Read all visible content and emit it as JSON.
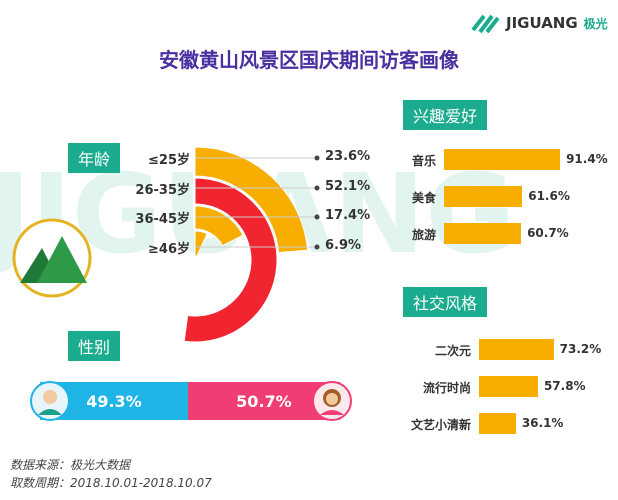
{
  "logo": {
    "text": "JIGUANG",
    "sub": "极光"
  },
  "title": "安徽黄山风景区国庆期间访客画像",
  "age": {
    "heading": "年龄",
    "items": [
      {
        "label": "≤25岁",
        "value": 23.6,
        "text": "23.6%",
        "color": "#f8ae00"
      },
      {
        "label": "26-35岁",
        "value": 52.1,
        "text": "52.1%",
        "color": "#f0252f"
      },
      {
        "label": "36-45岁",
        "value": 17.4,
        "text": "17.4%",
        "color": "#f8ae00"
      },
      {
        "label": "≥46岁",
        "value": 6.9,
        "text": "6.9%",
        "color": "#f8ae00"
      }
    ]
  },
  "gender": {
    "heading": "性别",
    "male": {
      "value": 49.3,
      "text": "49.3%",
      "color": "#1fb4e6"
    },
    "female": {
      "value": 50.7,
      "text": "50.7%",
      "color": "#f03e74"
    }
  },
  "chart_data": [
    {
      "type": "pie",
      "title": "年龄",
      "categories": [
        "≤25岁",
        "26-35岁",
        "36-45岁",
        "≥46岁"
      ],
      "values": [
        23.6,
        52.1,
        17.4,
        6.9
      ]
    },
    {
      "type": "bar",
      "title": "兴趣爱好",
      "categories": [
        "音乐",
        "美食",
        "旅游"
      ],
      "values": [
        91.4,
        61.6,
        60.7
      ]
    },
    {
      "type": "bar",
      "title": "社交风格",
      "categories": [
        "二次元",
        "流行时尚",
        "文艺小清新"
      ],
      "values": [
        73.2,
        57.8,
        36.1
      ]
    },
    {
      "type": "bar",
      "title": "性别",
      "categories": [
        "男",
        "女"
      ],
      "values": [
        49.3,
        50.7
      ]
    }
  ],
  "interest": {
    "heading": "兴趣爱好",
    "items": [
      {
        "label": "音乐",
        "value": 91.4,
        "text": "91.4%"
      },
      {
        "label": "美食",
        "value": 61.6,
        "text": "61.6%"
      },
      {
        "label": "旅游",
        "value": 60.7,
        "text": "60.7%"
      }
    ]
  },
  "social": {
    "heading": "社交风格",
    "items": [
      {
        "label": "二次元",
        "value": 73.2,
        "text": "73.2%"
      },
      {
        "label": "流行时尚",
        "value": 57.8,
        "text": "57.8%"
      },
      {
        "label": "文艺小清新",
        "value": 36.1,
        "text": "36.1%"
      }
    ]
  },
  "source": "数据来源：极光大数据",
  "period": "取数周期：2018.10.01-2018.10.07"
}
